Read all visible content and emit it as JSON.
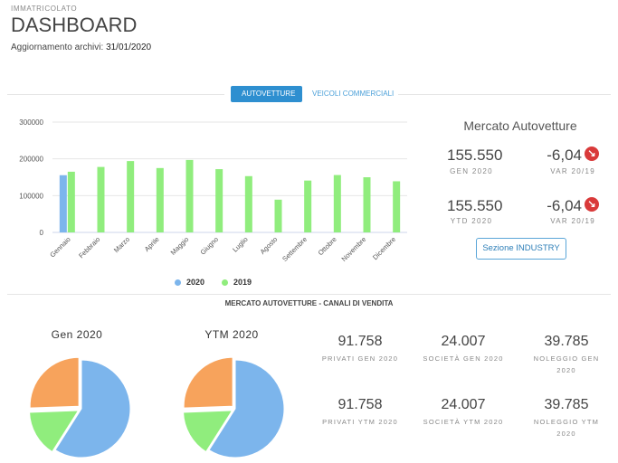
{
  "header": {
    "kicker": "IMMATRICOLATO",
    "title": "DASHBOARD",
    "update_label": "Aggiornamento archivi:",
    "update_date": "31/01/2020"
  },
  "tabs": [
    {
      "label": "AUTOVETTURE",
      "active": true
    },
    {
      "label": "VEICOLI COMMERCIALI",
      "active": false
    }
  ],
  "market": {
    "title": "Mercato Autovetture",
    "rows": [
      {
        "value": "155.550",
        "label": "GEN 2020",
        "var": "-6,04",
        "var_label": "VAR 20/19"
      },
      {
        "value": "155.550",
        "label": "YTD 2020",
        "var": "-6,04",
        "var_label": "VAR 20/19"
      }
    ],
    "button": "Sezione INDUSTRY"
  },
  "legend": [
    {
      "name": "2020",
      "color": "#7cb5ec"
    },
    {
      "name": "2019",
      "color": "#90ed7d"
    }
  ],
  "channels_title": "MERCATO AUTOVETTURE - CANALI DI VENDITA",
  "pies": [
    {
      "title": "Gen 2020"
    },
    {
      "title": "YTM 2020"
    }
  ],
  "stats": [
    [
      {
        "value": "91.758",
        "label": "PRIVATI GEN 2020"
      },
      {
        "value": "24.007",
        "label": "SOCIETÀ GEN 2020"
      },
      {
        "value": "39.785",
        "label": "NOLEGGIO GEN 2020"
      }
    ],
    [
      {
        "value": "91.758",
        "label": "PRIVATI YTM 2020"
      },
      {
        "value": "24.007",
        "label": "SOCIETÀ YTM 2020"
      },
      {
        "value": "39.785",
        "label": "NOLEGGIO YTM 2020"
      }
    ]
  ],
  "chart_data": [
    {
      "type": "bar",
      "categories": [
        "Gennaio",
        "Febbraio",
        "Marzo",
        "Aprile",
        "Maggio",
        "Giugno",
        "Luglio",
        "Agosto",
        "Settembre",
        "Ottobre",
        "Novembre",
        "Dicembre"
      ],
      "series": [
        {
          "name": "2020",
          "color": "#7cb5ec",
          "values": [
            155550,
            null,
            null,
            null,
            null,
            null,
            null,
            null,
            null,
            null,
            null,
            null
          ]
        },
        {
          "name": "2019",
          "color": "#90ed7d",
          "values": [
            165000,
            178000,
            194000,
            175000,
            197000,
            172000,
            153000,
            89000,
            141000,
            156000,
            150000,
            139000
          ]
        }
      ],
      "ylim": [
        0,
        300000
      ],
      "yticks": [
        0,
        100000,
        200000,
        300000
      ],
      "ytick_labels": [
        "0",
        "100000",
        "200000",
        "300000"
      ],
      "grid": true,
      "legend": "bottom"
    },
    {
      "type": "pie",
      "title": "Gen 2020",
      "slices": [
        {
          "name": "Privati",
          "value": 91758,
          "color": "#7cb5ec"
        },
        {
          "name": "Società",
          "value": 24007,
          "color": "#90ed7d"
        },
        {
          "name": "Noleggio",
          "value": 39785,
          "color": "#f7a35c"
        }
      ]
    },
    {
      "type": "pie",
      "title": "YTM 2020",
      "slices": [
        {
          "name": "Privati",
          "value": 91758,
          "color": "#7cb5ec"
        },
        {
          "name": "Società",
          "value": 24007,
          "color": "#90ed7d"
        },
        {
          "name": "Noleggio",
          "value": 39785,
          "color": "#f7a35c"
        }
      ]
    }
  ]
}
